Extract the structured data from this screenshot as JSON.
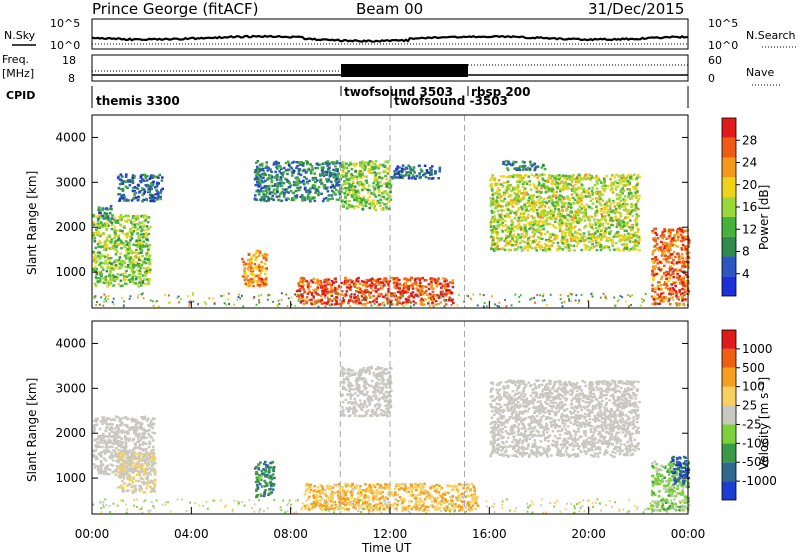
{
  "header": {
    "station": "Prince George (fitACF)",
    "beam": "Beam 00",
    "date": "31/Dec/2015"
  },
  "strip_noise": {
    "left_label": "N.Sky",
    "right_label": "N.Search",
    "left_ticks": [
      "10^5",
      "10^0"
    ],
    "right_ticks": [
      "10^5",
      "10^0"
    ]
  },
  "strip_freq": {
    "left_label_1": "Freq.",
    "left_label_2": "[MHz]",
    "right_label": "Nave",
    "left_ticks": [
      "18",
      "8"
    ],
    "right_ticks": [
      "60",
      "0"
    ]
  },
  "cpid": {
    "label": "CPID",
    "segments": [
      {
        "name": "themis 3300",
        "start_hour": 0
      },
      {
        "name": "twofsound 3503",
        "start_hour": 10
      },
      {
        "name": "twofsound -3503",
        "start_hour": 12
      },
      {
        "name": "rbsp 200",
        "start_hour": 15
      }
    ]
  },
  "panels": {
    "power": {
      "ylabel": "Slant Range [km]",
      "yticks": [
        "4000",
        "3000",
        "2000",
        "1000"
      ],
      "colorbar_label": "Power [dB]",
      "colorbar_ticks": [
        "28",
        "24",
        "20",
        "16",
        "12",
        "8",
        "4"
      ],
      "colors": [
        "#1e2fd8",
        "#2c56c2",
        "#2f8a4c",
        "#46b23a",
        "#9ad83a",
        "#f0d21a",
        "#f39a1c",
        "#ef5a14",
        "#e11a1a"
      ]
    },
    "velocity": {
      "ylabel": "Slant Range [km]",
      "yticks": [
        "4000",
        "3000",
        "2000",
        "1000"
      ],
      "colorbar_label": "Velocity [m s⁻¹]",
      "colorbar_ticks": [
        "1000",
        "500",
        "100",
        "25",
        "-25",
        "-100",
        "-500",
        "-1000"
      ],
      "colors": [
        "#1a3fd0",
        "#2f6a8c",
        "#3a9a45",
        "#7ad13a",
        "#c8c8c0",
        "#f7d060",
        "#f3a020",
        "#ee6010",
        "#e01a1a"
      ],
      "ground_scatter_color": "#c8c8c0"
    }
  },
  "xaxis": {
    "ticks": [
      "00:00",
      "04:00",
      "08:00",
      "12:00",
      "16:00",
      "20:00",
      "00:00"
    ],
    "label": "Time UT"
  },
  "chart_data": {
    "type": "heatmap",
    "title": "Prince George (fitACF)  Beam 00  31/Dec/2015",
    "x_unit": "hours UT",
    "xlim": [
      0,
      24
    ],
    "ylim": [
      200,
      4500
    ],
    "panels": [
      {
        "name": "Power [dB]",
        "clim": [
          0,
          30
        ],
        "regions": [
          {
            "t0": 0.0,
            "t1": 2.3,
            "r0": 700,
            "r1": 2300,
            "value": 14
          },
          {
            "t0": 0.2,
            "t1": 0.8,
            "r0": 2200,
            "r1": 2500,
            "value": 8
          },
          {
            "t0": 1.0,
            "t1": 2.8,
            "r0": 2600,
            "r1": 3200,
            "value": 6
          },
          {
            "t0": 6.0,
            "t1": 7.0,
            "r0": 700,
            "r1": 1500,
            "value": 22
          },
          {
            "t0": 8.2,
            "t1": 14.5,
            "r0": 300,
            "r1": 900,
            "value": 26
          },
          {
            "t0": 6.5,
            "t1": 10.0,
            "r0": 2600,
            "r1": 3500,
            "value": 8
          },
          {
            "t0": 10.0,
            "t1": 12.0,
            "r0": 2400,
            "r1": 3500,
            "value": 14
          },
          {
            "t0": 12.0,
            "t1": 14.0,
            "r0": 3100,
            "r1": 3400,
            "value": 6
          },
          {
            "t0": 16.0,
            "t1": 22.0,
            "r0": 1500,
            "r1": 3200,
            "value": 16
          },
          {
            "t0": 16.5,
            "t1": 18.2,
            "r0": 3300,
            "r1": 3500,
            "value": 8
          },
          {
            "t0": 22.5,
            "t1": 24.0,
            "r0": 300,
            "r1": 2000,
            "value": 24
          }
        ]
      },
      {
        "name": "Velocity [m s^-1]",
        "clim": [
          -1000,
          1000
        ],
        "regions": [
          {
            "t0": 0.0,
            "t1": 2.5,
            "r0": 1100,
            "r1": 2400,
            "value": 0,
            "ground_scatter": true
          },
          {
            "t0": 1.0,
            "t1": 2.5,
            "r0": 700,
            "r1": 1600,
            "value": 100
          },
          {
            "t0": 6.5,
            "t1": 7.3,
            "r0": 600,
            "r1": 1400,
            "value": -500
          },
          {
            "t0": 8.5,
            "t1": 15.5,
            "r0": 300,
            "r1": 900,
            "value": 300
          },
          {
            "t0": 10.0,
            "t1": 12.0,
            "r0": 2400,
            "r1": 3500,
            "value": 0,
            "ground_scatter": true
          },
          {
            "t0": 16.0,
            "t1": 22.0,
            "r0": 1500,
            "r1": 3200,
            "value": 0,
            "ground_scatter": true
          },
          {
            "t0": 22.5,
            "t1": 24.0,
            "r0": 300,
            "r1": 1400,
            "value": -200
          },
          {
            "t0": 23.3,
            "t1": 24.0,
            "r0": 900,
            "r1": 1500,
            "value": -800
          }
        ]
      }
    ]
  }
}
